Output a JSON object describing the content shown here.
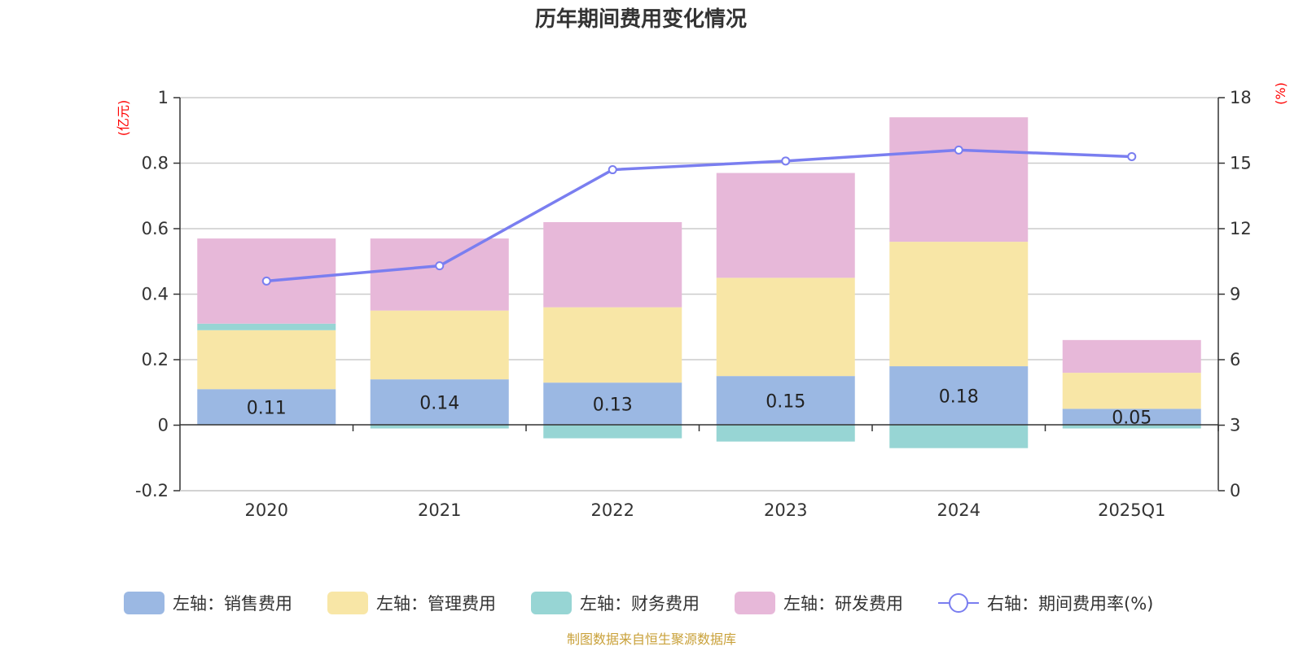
{
  "chart_data": {
    "type": "bar",
    "stacked": true,
    "title": "历年期间费用变化情况",
    "categories": [
      "2020",
      "2021",
      "2022",
      "2023",
      "2024",
      "2025Q1"
    ],
    "left_axis": {
      "unit": "(亿元)",
      "ylim": [
        -0.2,
        1
      ],
      "ticks": [
        -0.2,
        0,
        0.2,
        0.4,
        0.6,
        0.8,
        1
      ],
      "tick_labels": [
        "-0.2",
        "0",
        "0.2",
        "0.4",
        "0.6",
        "0.8",
        "1"
      ]
    },
    "right_axis": {
      "unit": "(%)",
      "ylim": [
        0,
        18
      ],
      "ticks": [
        0,
        3,
        6,
        9,
        12,
        15,
        18
      ],
      "tick_labels": [
        "0",
        "3",
        "6",
        "9",
        "12",
        "15",
        "18"
      ]
    },
    "series": [
      {
        "name": "左轴：销售费用",
        "axis": "left",
        "color": "#9bb8e3",
        "values": [
          0.11,
          0.14,
          0.13,
          0.15,
          0.18,
          0.05
        ],
        "data_labels": [
          "0.11",
          "0.14",
          "0.13",
          "0.15",
          "0.18",
          "0.05"
        ]
      },
      {
        "name": "左轴：管理费用",
        "axis": "left",
        "color": "#f8e6a6",
        "values": [
          0.18,
          0.21,
          0.23,
          0.3,
          0.38,
          0.11
        ]
      },
      {
        "name": "左轴：财务费用",
        "axis": "left",
        "color": "#97d5d4",
        "values": [
          0.02,
          -0.01,
          -0.04,
          -0.05,
          -0.07,
          -0.01
        ]
      },
      {
        "name": "左轴：研发费用",
        "axis": "left",
        "color": "#e7b8d9",
        "values": [
          0.26,
          0.22,
          0.26,
          0.32,
          0.38,
          0.1
        ]
      },
      {
        "name": "右轴：期间费用率(%)",
        "axis": "right",
        "type": "line",
        "color": "#7a7ef0",
        "values": [
          9.6,
          10.3,
          14.7,
          15.1,
          15.6,
          15.3
        ]
      }
    ],
    "grid": true,
    "legend_position": "bottom",
    "source": "制图数据来自恒生聚源数据库"
  }
}
